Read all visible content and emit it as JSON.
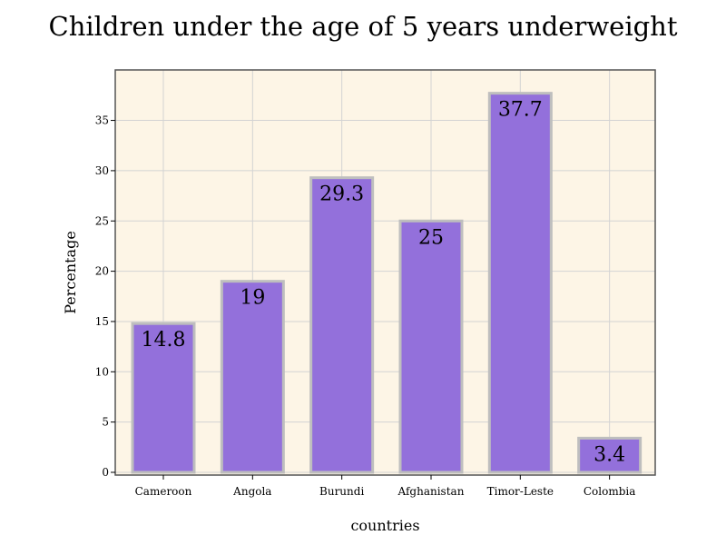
{
  "chart_data": {
    "type": "bar",
    "title": "Children under the age of 5 years underweight",
    "xlabel": "countries",
    "ylabel": "Percentage",
    "categories": [
      "Cameroon",
      "Angola",
      "Burundi",
      "Afghanistan",
      "Timor-Leste",
      "Colombia"
    ],
    "values": [
      14.8,
      19,
      29.3,
      25,
      37.7,
      3.4
    ],
    "value_labels": [
      "14.8",
      "19",
      "29.3",
      "25",
      "37.7",
      "3.4"
    ],
    "ylim": [
      0,
      40
    ],
    "yticks": [
      0,
      5,
      10,
      15,
      20,
      25,
      30,
      35
    ],
    "grid": true,
    "legend": "none",
    "colors": {
      "bar_fill": "#9370DB",
      "bar_edge": "#BEBEBE",
      "plot_background": "#FDF5E6",
      "grid": "#D3D3D3",
      "frame": "#555555"
    }
  }
}
